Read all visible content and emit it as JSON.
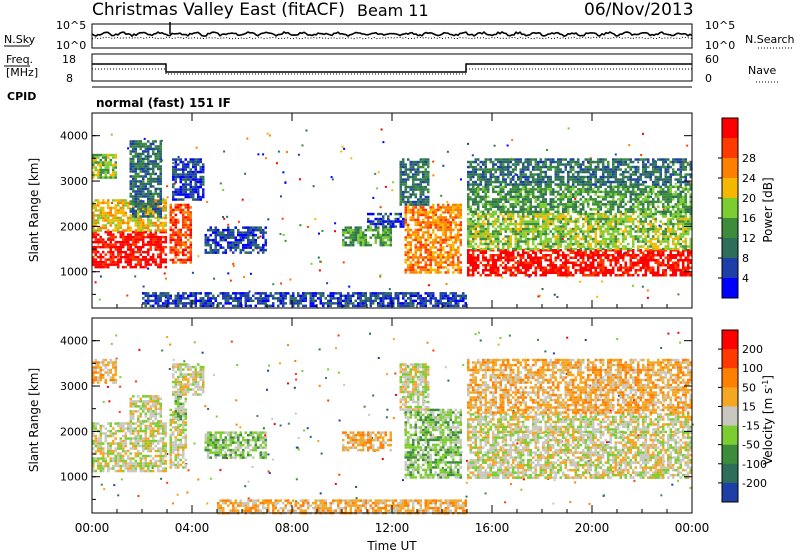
{
  "header": {
    "title": "Christmas Valley East (fitACF)",
    "beam": "Beam 11",
    "date": "06/Nov/2013"
  },
  "sky_panel": {
    "left_label": "N.Sky",
    "right_label": "N.Search",
    "left_ticks": [
      "10^5",
      "10^0"
    ],
    "right_ticks": [
      "10^5",
      "10^0"
    ]
  },
  "freq_panel": {
    "left_label_1": "Freq.",
    "left_label_2": "[MHz]",
    "left_ticks": [
      "18",
      "8"
    ],
    "right_label": "Nave",
    "right_ticks": [
      "60",
      "0"
    ],
    "cpid_label": "CPID"
  },
  "mode_text": "normal (fast) 151 IF",
  "colors": {
    "power_scale": [
      "#0000ff",
      "#1f3fa8",
      "#2c6e5a",
      "#3c8c3c",
      "#7ccd32",
      "#f5b800",
      "#ff7f00",
      "#ff3a00",
      "#ff0000"
    ],
    "velocity_scale": [
      "#1f3fa8",
      "#2c6e5a",
      "#3c8c3c",
      "#7ccd32",
      "#c8c8c0",
      "#f5a623",
      "#ff7f00",
      "#ff3a00",
      "#ff0000"
    ]
  },
  "chart_data": [
    {
      "type": "heatmap",
      "name": "power",
      "ylabel": "Slant Range [km]",
      "xlim": [
        0,
        24
      ],
      "ylim": [
        200,
        4500
      ],
      "yticks": [
        "1000",
        "2000",
        "3000",
        "4000"
      ],
      "colorbar_label": "Power [dB]",
      "colorbar_ticks": [
        "4",
        "8",
        "12",
        "16",
        "20",
        "24",
        "28"
      ],
      "regions": [
        {
          "x0": 0.0,
          "x1": 3.0,
          "y0": 1100,
          "y1": 1900,
          "level": 8
        },
        {
          "x0": 0.0,
          "x1": 3.0,
          "y0": 1900,
          "y1": 2600,
          "level": 5
        },
        {
          "x0": 0.0,
          "x1": 1.0,
          "y0": 3100,
          "y1": 3600,
          "level": 4
        },
        {
          "x0": 1.5,
          "x1": 2.8,
          "y0": 2200,
          "y1": 3900,
          "level": 2
        },
        {
          "x0": 3.1,
          "x1": 4.0,
          "y0": 1200,
          "y1": 2500,
          "level": 7
        },
        {
          "x0": 3.2,
          "x1": 4.5,
          "y0": 2600,
          "y1": 3500,
          "level": 1
        },
        {
          "x0": 4.5,
          "x1": 7.0,
          "y0": 1400,
          "y1": 2000,
          "level": 1
        },
        {
          "x0": 2.0,
          "x1": 15.0,
          "y0": 250,
          "y1": 550,
          "level": 1
        },
        {
          "x0": 10.0,
          "x1": 12.0,
          "y0": 1600,
          "y1": 2000,
          "level": 3
        },
        {
          "x0": 11.0,
          "x1": 12.5,
          "y0": 2000,
          "y1": 2300,
          "level": 1
        },
        {
          "x0": 12.5,
          "x1": 14.8,
          "y0": 1000,
          "y1": 2500,
          "level": 6
        },
        {
          "x0": 12.3,
          "x1": 13.5,
          "y0": 2500,
          "y1": 3500,
          "level": 2
        },
        {
          "x0": 15.0,
          "x1": 24.0,
          "y0": 900,
          "y1": 1500,
          "level": 8
        },
        {
          "x0": 15.0,
          "x1": 24.0,
          "y0": 1500,
          "y1": 2300,
          "level": 4
        },
        {
          "x0": 15.0,
          "x1": 24.0,
          "y0": 2300,
          "y1": 2900,
          "level": 3
        },
        {
          "x0": 15.0,
          "x1": 24.0,
          "y0": 2900,
          "y1": 3500,
          "level": 2
        }
      ]
    },
    {
      "type": "heatmap",
      "name": "velocity",
      "ylabel": "Slant Range [km]",
      "xlabel": "Time UT",
      "xlim": [
        0,
        24
      ],
      "ylim": [
        200,
        4500
      ],
      "xticks": [
        "00:00",
        "04:00",
        "08:00",
        "12:00",
        "16:00",
        "20:00",
        "00:00"
      ],
      "yticks": [
        "1000",
        "2000",
        "3000",
        "4000"
      ],
      "colorbar_label": "Velocity [m s^-1]",
      "colorbar_ticks": [
        "200",
        "100",
        "50",
        "15",
        "-15",
        "-50",
        "-100",
        "-200"
      ],
      "regions": [
        {
          "x0": 0.0,
          "x1": 3.0,
          "y0": 1100,
          "y1": 2200,
          "level": 4
        },
        {
          "x0": 1.5,
          "x1": 2.8,
          "y0": 2200,
          "y1": 2800,
          "level": 4
        },
        {
          "x0": 0.0,
          "x1": 1.0,
          "y0": 3100,
          "y1": 3600,
          "level": 5
        },
        {
          "x0": 3.1,
          "x1": 3.8,
          "y0": 1200,
          "y1": 2500,
          "level": 4
        },
        {
          "x0": 3.3,
          "x1": 3.8,
          "y0": 2300,
          "y1": 2800,
          "level": 3
        },
        {
          "x0": 3.2,
          "x1": 4.5,
          "y0": 2800,
          "y1": 3500,
          "level": 4
        },
        {
          "x0": 4.5,
          "x1": 7.0,
          "y0": 1400,
          "y1": 2000,
          "level": 3
        },
        {
          "x0": 5.0,
          "x1": 15.0,
          "y0": 200,
          "y1": 500,
          "level": 5
        },
        {
          "x0": 10.0,
          "x1": 12.0,
          "y0": 1600,
          "y1": 2000,
          "level": 5
        },
        {
          "x0": 12.5,
          "x1": 14.8,
          "y0": 1000,
          "y1": 2500,
          "level": 3
        },
        {
          "x0": 12.3,
          "x1": 13.5,
          "y0": 2500,
          "y1": 3500,
          "level": 4
        },
        {
          "x0": 15.0,
          "x1": 24.0,
          "y0": 1000,
          "y1": 2000,
          "level": 4
        },
        {
          "x0": 15.0,
          "x1": 24.0,
          "y0": 2000,
          "y1": 2400,
          "level": 4
        },
        {
          "x0": 15.0,
          "x1": 24.0,
          "y0": 2400,
          "y1": 3600,
          "level": 5
        }
      ]
    }
  ]
}
